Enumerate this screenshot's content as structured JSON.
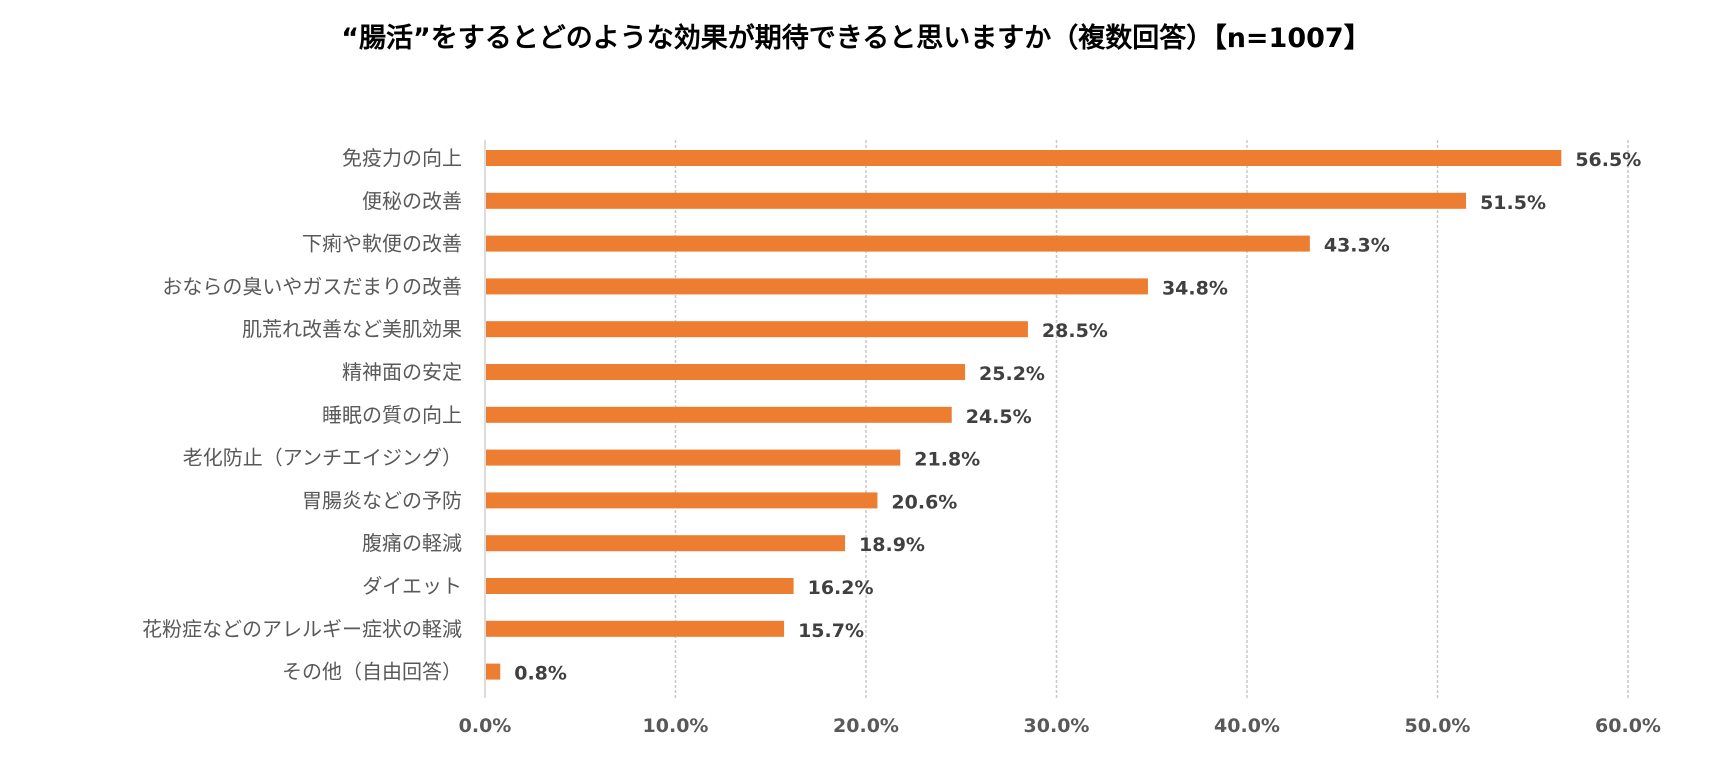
{
  "chart_data": {
    "type": "bar",
    "orientation": "horizontal",
    "title": "“腸活”をするとどのような効果が期待できると思いますか（複数回答）【n=1007】",
    "categories": [
      "免疫力の向上",
      "便秘の改善",
      "下痢や軟便の改善",
      "おならの臭いやガスだまりの改善",
      "肌荒れ改善など美肌効果",
      "精神面の安定",
      "睡眠の質の向上",
      "老化防止（アンチエイジング）",
      "胃腸炎などの予防",
      "腹痛の軽減",
      "ダイエット",
      "花粉症などのアレルギー症状の軽減",
      "その他（自由回答）"
    ],
    "values": [
      56.5,
      51.5,
      43.3,
      34.8,
      28.5,
      25.2,
      24.5,
      21.8,
      20.6,
      18.9,
      16.2,
      15.7,
      0.8
    ],
    "value_labels": [
      "56.5%",
      "51.5%",
      "43.3%",
      "34.8%",
      "28.5%",
      "25.2%",
      "24.5%",
      "21.8%",
      "20.6%",
      "18.9%",
      "16.2%",
      "15.7%",
      "0.8%"
    ],
    "xlim": [
      0,
      60
    ],
    "xticks": [
      0,
      10,
      20,
      30,
      40,
      50,
      60
    ],
    "xtick_labels": [
      "0.0%",
      "10.0%",
      "20.0%",
      "30.0%",
      "40.0%",
      "50.0%",
      "60.0%"
    ],
    "xlabel": "",
    "ylabel": "",
    "grid": true,
    "legend": "none",
    "bar_color": "#ED7D31"
  }
}
